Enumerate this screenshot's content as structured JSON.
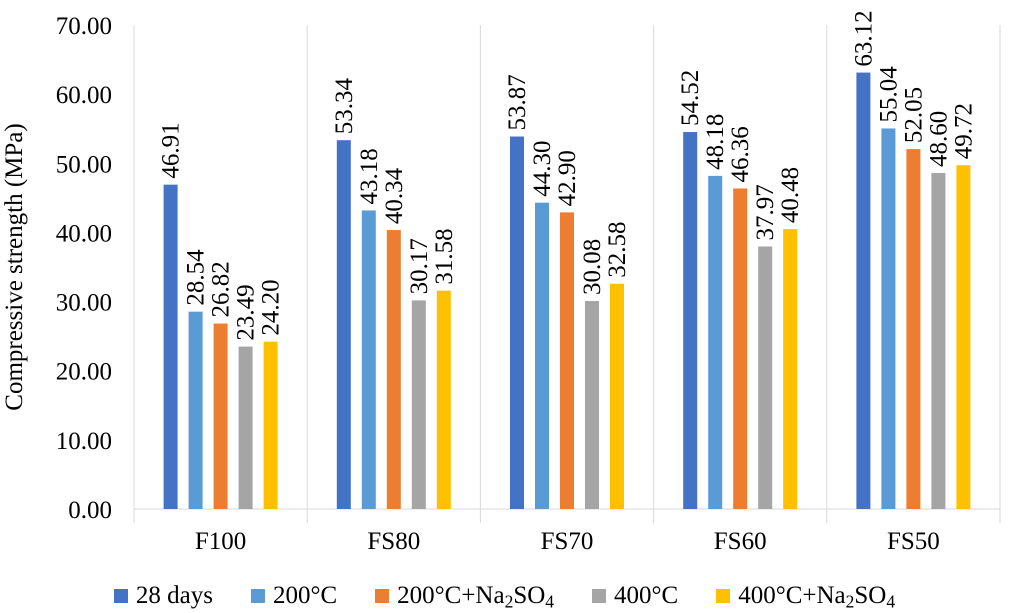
{
  "chart_data": {
    "type": "bar",
    "ylabel": "Compressive strength (MPa)",
    "xlabel": "",
    "ylim": [
      0,
      70
    ],
    "yticks": [
      "0.00",
      "10.00",
      "20.00",
      "30.00",
      "40.00",
      "50.00",
      "60.00",
      "70.00"
    ],
    "grid": false,
    "legend_position": "bottom",
    "categories": [
      "F100",
      "FS80",
      "FS70",
      "FS60",
      "FS50"
    ],
    "series": [
      {
        "name": "28 days",
        "color": "#4472C4",
        "values": [
          46.91,
          53.34,
          53.87,
          54.52,
          63.12
        ],
        "labels": [
          "46.91",
          "53.34",
          "53.87",
          "54.52",
          "63.12"
        ]
      },
      {
        "name": "200°C",
        "color": "#5B9BD5",
        "values": [
          28.54,
          43.18,
          44.3,
          48.18,
          55.04
        ],
        "labels": [
          "28.54",
          "43.18",
          "44.30",
          "48.18",
          "55.04"
        ]
      },
      {
        "name": "200°C+Na2SO4",
        "color": "#ED7D31",
        "values": [
          26.82,
          40.34,
          42.9,
          46.36,
          52.05
        ],
        "labels": [
          "26.82",
          "40.34",
          "42.90",
          "46.36",
          "52.05"
        ]
      },
      {
        "name": "400°C",
        "color": "#A5A5A5",
        "values": [
          23.49,
          30.17,
          30.08,
          37.97,
          48.6
        ],
        "labels": [
          "23.49",
          "30.17",
          "30.08",
          "37.97",
          "48.60"
        ]
      },
      {
        "name": "400°C+Na2SO4",
        "color": "#FFC000",
        "values": [
          24.2,
          31.58,
          32.58,
          40.48,
          49.72
        ],
        "labels": [
          "24.20",
          "31.58",
          "32.58",
          "40.48",
          "49.72"
        ]
      }
    ]
  },
  "legend": {
    "items": [
      {
        "main": "28 days",
        "sub1": "",
        "tail": "",
        "sub2": ""
      },
      {
        "main": "200°C",
        "sub1": "",
        "tail": "",
        "sub2": ""
      },
      {
        "main": "200°C+Na",
        "sub1": "2",
        "tail": "SO",
        "sub2": "4"
      },
      {
        "main": "400°C",
        "sub1": "",
        "tail": "",
        "sub2": ""
      },
      {
        "main": "400°C+Na",
        "sub1": "2",
        "tail": "SO",
        "sub2": "4"
      }
    ]
  }
}
